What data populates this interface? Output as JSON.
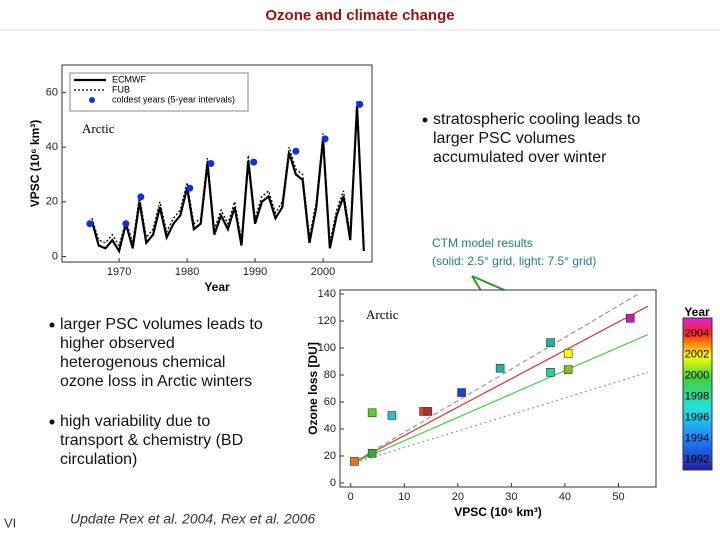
{
  "slide": {
    "title": "Ozone and climate change",
    "bullet1": [
      "stratospheric cooling leads to",
      "larger PSC volumes",
      "accumulated over winter"
    ],
    "bullet2": [
      "larger PSC volumes leads to",
      "higher  observed",
      "heterogenous chemical",
      "ozone loss in Arctic winters"
    ],
    "bullet3": [
      "high variability due to",
      "transport & chemistry (BD",
      "circulation)"
    ],
    "note": [
      "CTM model results",
      "(solid: 2.5° grid, light: 7.5° grid)"
    ],
    "footer": "Update Rex et al. 2004, Rex et al. 2006",
    "page": "VI"
  },
  "chart_data": [
    {
      "type": "line",
      "annotation": "Arctic",
      "xlabel": "Year",
      "ylabel": "VPSC (10⁶ km³)",
      "xlim": [
        1961.6,
        2007.2
      ],
      "ylim": [
        -2,
        70
      ],
      "xticks": [
        1970,
        1980,
        1990,
        2000
      ],
      "yticks": [
        0,
        20,
        40,
        60
      ],
      "x": [
        1966,
        1967,
        1968,
        1969,
        1970,
        1971,
        1972,
        1973,
        1974,
        1975,
        1976,
        1977,
        1978,
        1979,
        1980,
        1981,
        1982,
        1983,
        1984,
        1985,
        1986,
        1987,
        1988,
        1989,
        1990,
        1991,
        1992,
        1993,
        1994,
        1995,
        1996,
        1997,
        1998,
        1999,
        2000,
        2001,
        2002,
        2003,
        2004,
        2005,
        2006
      ],
      "series": [
        {
          "name": "ECMWF",
          "color": "#000000",
          "values": [
            13,
            4,
            3,
            6,
            2,
            12,
            3,
            20,
            5,
            8,
            18,
            7,
            12,
            15,
            25,
            10,
            12,
            34,
            8,
            15,
            10,
            18,
            4,
            35,
            12,
            20,
            22,
            14,
            18,
            38,
            30,
            28,
            5,
            18,
            43,
            3,
            15,
            22,
            6,
            55,
            2
          ]
        },
        {
          "name": "FUB",
          "color": "#000000",
          "values": [
            14,
            6,
            5,
            8,
            4,
            13,
            5,
            22,
            7,
            10,
            20,
            9,
            14,
            17,
            27,
            12,
            14,
            36,
            10,
            17,
            12,
            20,
            6,
            37,
            14,
            22,
            24,
            16,
            20,
            40,
            32,
            30,
            7,
            20,
            45,
            5,
            17,
            24,
            8,
            57,
            4
          ]
        }
      ],
      "points": {
        "name": "coldest years (5-year intervals)",
        "color": "#1030e0",
        "x": [
          1965.7,
          1971,
          1973.2,
          1980.4,
          1983.5,
          1989.8,
          1996,
          2000.3,
          2005.4
        ],
        "values": [
          12,
          12,
          21.8,
          25,
          34,
          34.5,
          38.5,
          43,
          55.6
        ]
      }
    },
    {
      "type": "scatter",
      "annotation": "Arctic",
      "xlabel": "VPSC (10⁶ km³)",
      "ylabel": "Ozone loss [DU]",
      "xlim": [
        -2,
        57
      ],
      "ylim": [
        -3,
        143
      ],
      "xticks": [
        0,
        10,
        20,
        30,
        40,
        50
      ],
      "yticks": [
        0,
        20,
        40,
        60,
        80,
        100,
        120,
        140
      ],
      "points": {
        "x": [
          0.7,
          4,
          4,
          7.7,
          13.6,
          14.4,
          20.7,
          27.9,
          37.3,
          37.3,
          40.6,
          40.6,
          52.2
        ],
        "values": [
          16,
          22,
          52,
          50,
          53,
          53,
          67,
          85,
          104,
          82,
          96,
          84,
          122
        ],
        "colors": [
          "#f07020",
          "#30b030",
          "#60d020",
          "#30c0c0",
          "#e04020",
          "#b03030",
          "#2040d0",
          "#20b0a0",
          "#20b0a0",
          "#20d0a0",
          "#ffff00",
          "#80c020",
          "#c020c0"
        ]
      },
      "lines": [
        {
          "color": "#e03030",
          "dash": "none",
          "x": [
            0,
            55.5
          ],
          "values": [
            14,
            131
          ]
        },
        {
          "color": "#40d040",
          "dash": "none",
          "x": [
            0,
            55.5
          ],
          "values": [
            14,
            110
          ]
        },
        {
          "color": "#999999",
          "dash": "5,3",
          "x": [
            0,
            53.7
          ],
          "values": [
            14,
            140
          ]
        },
        {
          "color": "#999999",
          "dash": "2,3",
          "x": [
            0,
            55.5
          ],
          "values": [
            14,
            82
          ]
        }
      ],
      "colorbar": {
        "title": "Year",
        "lim": [
          1991,
          2005.5
        ],
        "ticks": [
          2004,
          2002,
          2000,
          1998,
          1996,
          1994,
          1992
        ]
      }
    }
  ]
}
